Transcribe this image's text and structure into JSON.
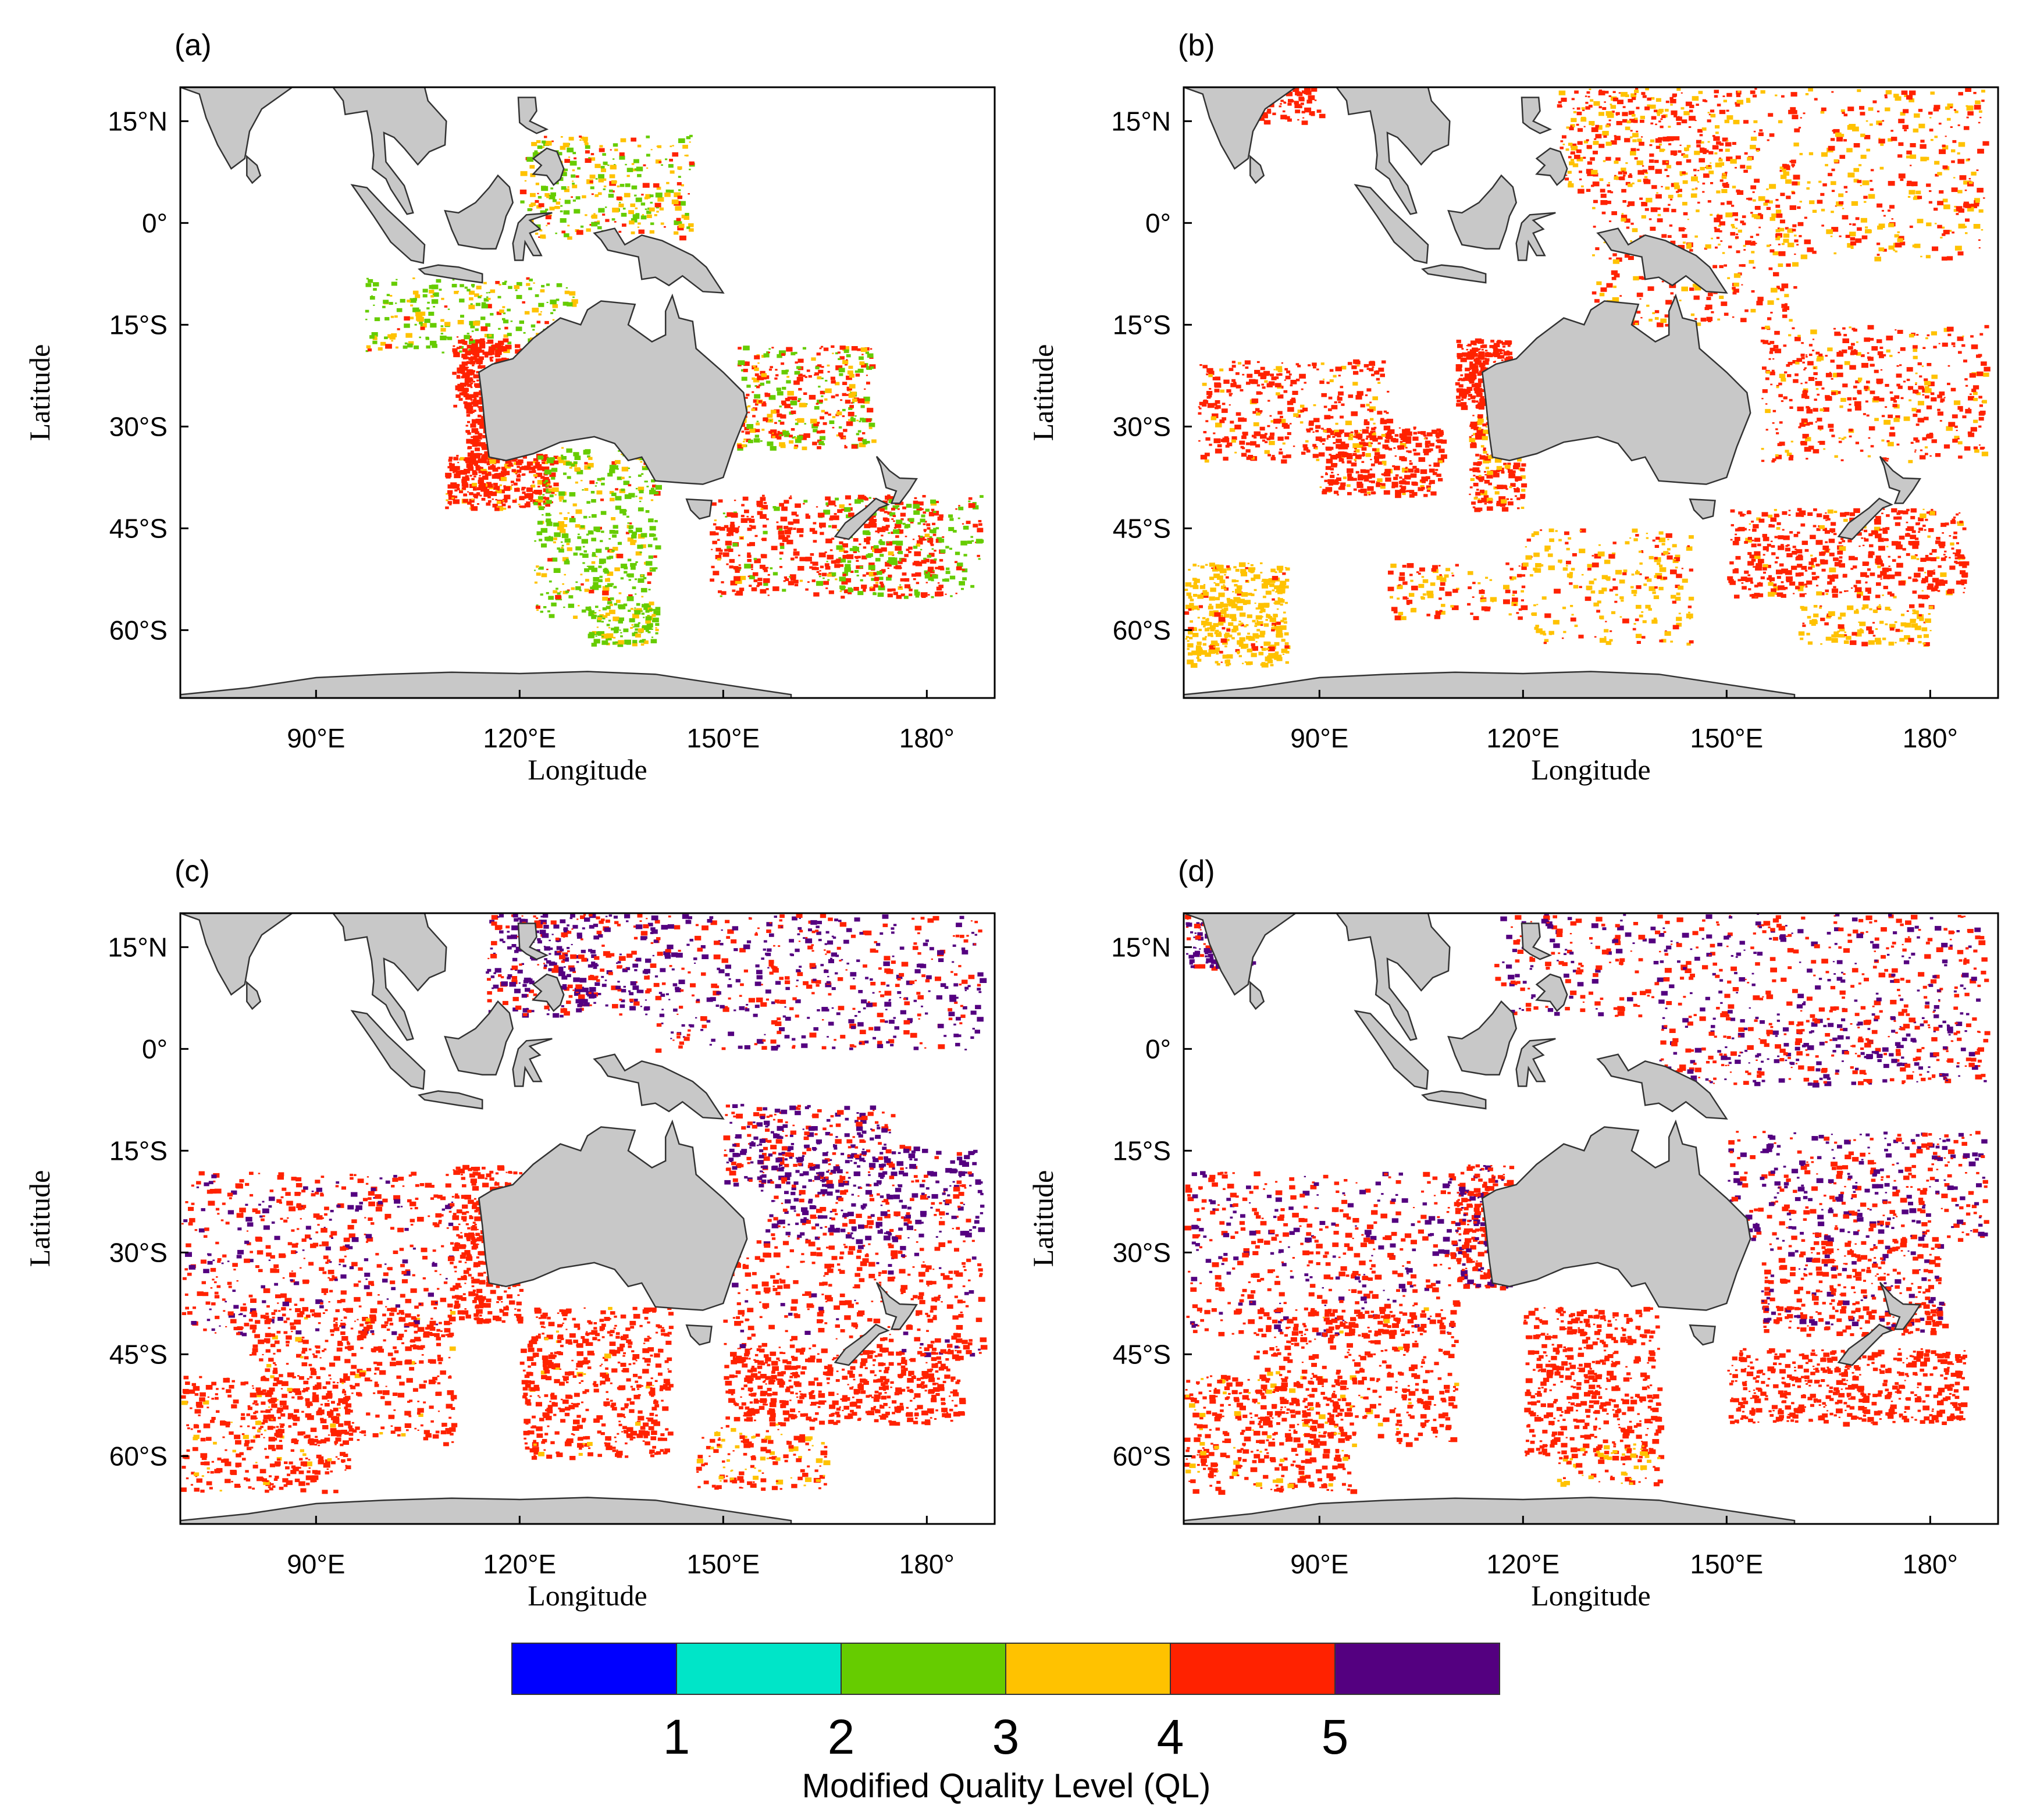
{
  "panels": [
    {
      "id": "a",
      "label": "(a)",
      "density": 0.55,
      "mix": {
        "green": 0.35,
        "yellow": 0.25,
        "red": 0.4
      }
    },
    {
      "id": "b",
      "label": "(b)",
      "density": 0.7,
      "mix": {
        "yellow": 0.25,
        "red": 0.75
      }
    },
    {
      "id": "c",
      "label": "(c)",
      "density": 0.8,
      "mix": {
        "red": 0.65,
        "purple": 0.33,
        "yellow": 0.02
      }
    },
    {
      "id": "d",
      "label": "(d)",
      "density": 0.8,
      "mix": {
        "red": 0.7,
        "purple": 0.27,
        "yellow": 0.03
      }
    }
  ],
  "lat_ticks": [
    "15°N",
    "0°",
    "15°S",
    "30°S",
    "45°S",
    "60°S"
  ],
  "lat_values": [
    15,
    0,
    -15,
    -30,
    -45,
    -60
  ],
  "lon_ticks": [
    "90°E",
    "120°E",
    "150°E",
    "180°"
  ],
  "lon_values": [
    90,
    120,
    150,
    180
  ],
  "lon_range": [
    70,
    190
  ],
  "lat_range": [
    -70,
    20
  ],
  "xlabel": "Longitude",
  "ylabel": "Latitude",
  "colorbar": {
    "title": "Modified Quality Level (QL)",
    "labels": [
      "1",
      "2",
      "3",
      "4",
      "5"
    ],
    "colors": [
      "#0000ff",
      "#00e5c8",
      "#66cc00",
      "#ffc200",
      "#ff2200",
      "#540080"
    ]
  },
  "colors": {
    "green": "#66cc00",
    "yellow": "#ffc200",
    "red": "#ff2200",
    "purple": "#540080",
    "land": "#c8c8c8"
  }
}
